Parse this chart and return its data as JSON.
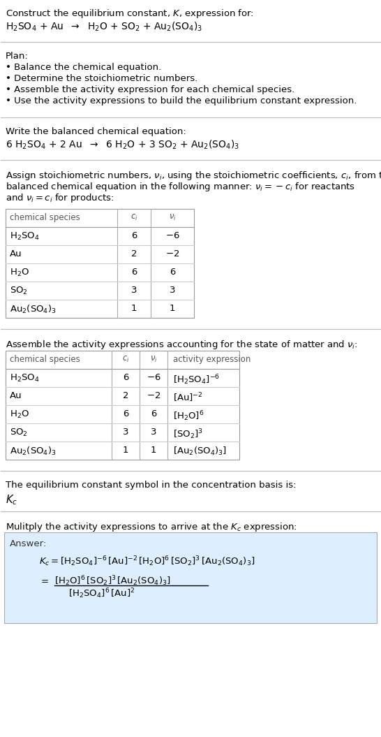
{
  "bg_color": "#ffffff",
  "answer_box_color": "#ddeeff",
  "fs": 9.5,
  "sections": {
    "title": {
      "line1": "Construct the equilibrium constant, $K$, expression for:",
      "line2": "$\\mathrm{H_2SO_4}$ + Au  $\\rightarrow$  $\\mathrm{H_2O}$ + $\\mathrm{SO_2}$ + $\\mathrm{Au_2(SO_4)_3}$"
    },
    "plan": {
      "header": "Plan:",
      "items": [
        "• Balance the chemical equation.",
        "• Determine the stoichiometric numbers.",
        "• Assemble the activity expression for each chemical species.",
        "• Use the activity expressions to build the equilibrium constant expression."
      ]
    },
    "balanced": {
      "header": "Write the balanced chemical equation:",
      "equation": "6 $\\mathrm{H_2SO_4}$ + 2 Au  $\\rightarrow$  6 $\\mathrm{H_2O}$ + 3 $\\mathrm{SO_2}$ + $\\mathrm{Au_2(SO_4)_3}$"
    },
    "stoich": {
      "header_lines": [
        "Assign stoichiometric numbers, $\\nu_i$, using the stoichiometric coefficients, $c_i$, from the",
        "balanced chemical equation in the following manner: $\\nu_i = -c_i$ for reactants",
        "and $\\nu_i = c_i$ for products:"
      ],
      "cols": [
        "chemical species",
        "$c_i$",
        "$\\nu_i$"
      ],
      "rows": [
        [
          "$\\mathrm{H_2SO_4}$",
          "6",
          "$-6$"
        ],
        [
          "Au",
          "2",
          "$-2$"
        ],
        [
          "$\\mathrm{H_2O}$",
          "6",
          "6"
        ],
        [
          "$\\mathrm{SO_2}$",
          "3",
          "3"
        ],
        [
          "$\\mathrm{Au_2(SO_4)_3}$",
          "1",
          "1"
        ]
      ]
    },
    "activity": {
      "header": "Assemble the activity expressions accounting for the state of matter and $\\nu_i$:",
      "cols": [
        "chemical species",
        "$c_i$",
        "$\\nu_i$",
        "activity expression"
      ],
      "rows": [
        [
          "$\\mathrm{H_2SO_4}$",
          "6",
          "$-6$",
          "$[\\mathrm{H_2SO_4}]^{-6}$"
        ],
        [
          "Au",
          "2",
          "$-2$",
          "$[\\mathrm{Au}]^{-2}$"
        ],
        [
          "$\\mathrm{H_2O}$",
          "6",
          "6",
          "$[\\mathrm{H_2O}]^{6}$"
        ],
        [
          "$\\mathrm{SO_2}$",
          "3",
          "3",
          "$[\\mathrm{SO_2}]^{3}$"
        ],
        [
          "$\\mathrm{Au_2(SO_4)_3}$",
          "1",
          "1",
          "$[\\mathrm{Au_2(SO_4)_3}]$"
        ]
      ]
    },
    "kc": {
      "header": "The equilibrium constant symbol in the concentration basis is:",
      "symbol": "$K_c$"
    },
    "answer": {
      "header": "Mulitply the activity expressions to arrive at the $K_c$ expression:",
      "label": "Answer:",
      "line1": "$K_c = [\\mathrm{H_2SO_4}]^{-6}\\,[\\mathrm{Au}]^{-2}\\,[\\mathrm{H_2O}]^{6}\\,[\\mathrm{SO_2}]^{3}\\,[\\mathrm{Au_2(SO_4)_3}]$",
      "line2_eq": "$=$",
      "line2_num": "$[\\mathrm{H_2O}]^{6}\\,[\\mathrm{SO_2}]^{3}\\,[\\mathrm{Au_2(SO_4)_3}]$",
      "line2_den": "$[\\mathrm{H_2SO_4}]^{6}\\,[\\mathrm{Au}]^{2}$"
    }
  }
}
